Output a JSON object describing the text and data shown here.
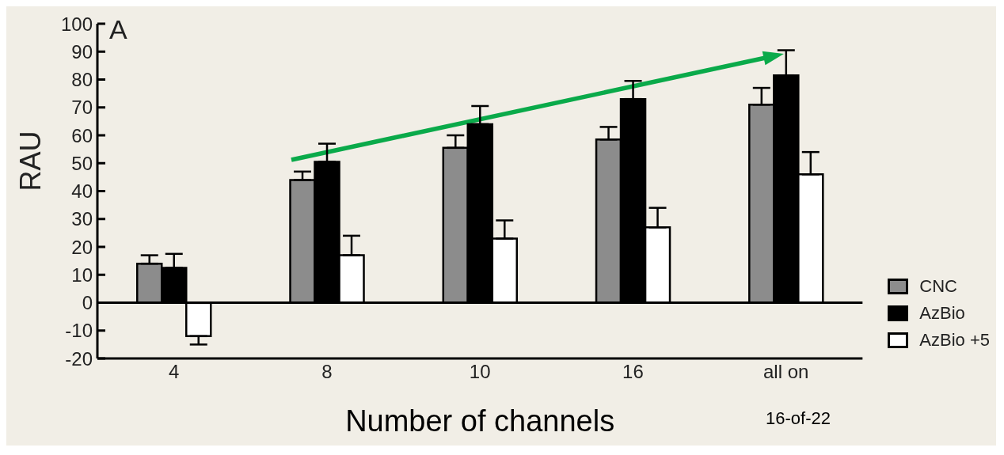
{
  "chart_data": {
    "type": "bar",
    "xlabel": "Number of channels",
    "ylabel": "RAU",
    "categories": [
      "4",
      "8",
      "10",
      "16",
      "all on"
    ],
    "series": [
      {
        "name": "CNC",
        "color": "#8c8c8c",
        "values": [
          14,
          44,
          55.5,
          58.5,
          71
        ],
        "errors": [
          [
            14,
            17
          ],
          [
            44,
            47
          ],
          [
            55.5,
            60
          ],
          [
            58.5,
            63
          ],
          [
            71,
            77
          ]
        ]
      },
      {
        "name": "AzBio",
        "color": "#000000",
        "values": [
          12.5,
          50.5,
          64,
          73,
          81.5
        ],
        "errors": [
          [
            12.5,
            17.5
          ],
          [
            50.5,
            57
          ],
          [
            64,
            70.5
          ],
          [
            73,
            79.5
          ],
          [
            81.5,
            90.5
          ]
        ]
      },
      {
        "name": "AzBio +5",
        "color": "#ffffff",
        "values": [
          -12,
          17,
          23,
          27,
          46
        ],
        "errors": [
          [
            -15,
            -12
          ],
          [
            17,
            24
          ],
          [
            23,
            29.5
          ],
          [
            27,
            34
          ],
          [
            46,
            54
          ]
        ]
      }
    ],
    "ylim": [
      -20,
      100
    ],
    "yticks": [
      -20,
      -10,
      0,
      10,
      20,
      30,
      40,
      50,
      60,
      70,
      80,
      90,
      100
    ],
    "ref_lines": [
      {
        "axis": "y",
        "value": 0,
        "color": "#000000"
      }
    ],
    "annotations": [
      "A",
      "16-of-22"
    ],
    "legend": "bottom right",
    "grid": false
  }
}
